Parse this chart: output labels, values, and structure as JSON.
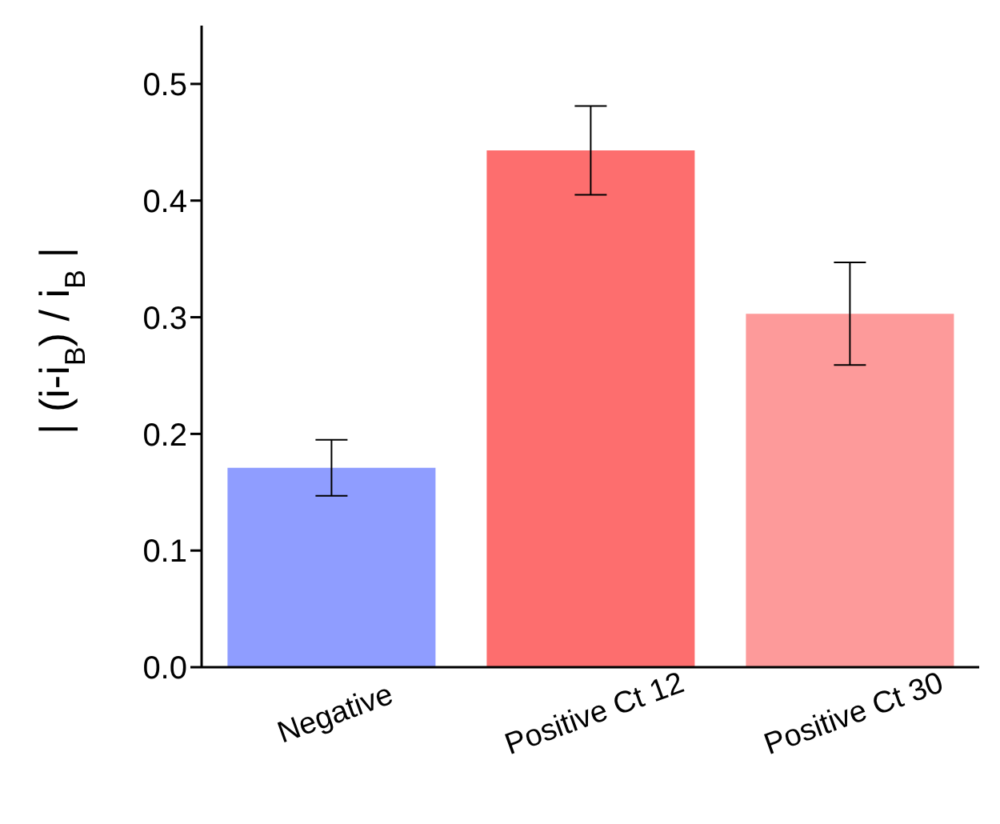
{
  "chart_data": {
    "type": "bar",
    "ylabel": "| (i-i$_{B}$) / i$_{B}$ |",
    "categories": [
      "Negative",
      "Positive Ct 12",
      "Positive Ct 30"
    ],
    "values": [
      0.171,
      0.443,
      0.303
    ],
    "errors": [
      0.024,
      0.038,
      0.044
    ],
    "colors": [
      "#8f9dff",
      "#fd6e6e",
      "#fd9a9a"
    ],
    "ylim": [
      0,
      0.55
    ],
    "yticks": [
      {
        "value": 0,
        "label": "0.0"
      },
      {
        "value": 0.1,
        "label": "0.1"
      },
      {
        "value": 0.2,
        "label": "0.2"
      },
      {
        "value": 0.3,
        "label": "0.3"
      },
      {
        "value": 0.4,
        "label": "0.4"
      },
      {
        "value": 0.5,
        "label": "0.5"
      }
    ]
  }
}
